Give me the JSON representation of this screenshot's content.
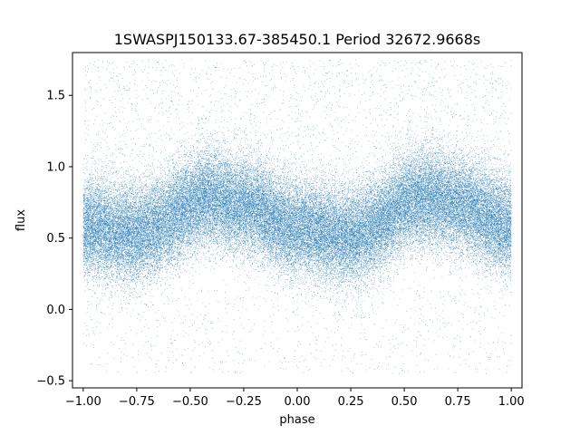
{
  "chart_data": {
    "type": "scatter",
    "title": "1SWASPJ150133.67-385450.1 Period 32672.9668s",
    "xlabel": "phase",
    "ylabel": "flux",
    "xlim": [
      -1.05,
      1.05
    ],
    "ylim": [
      -0.55,
      1.8
    ],
    "x_ticks": [
      -1.0,
      -0.75,
      -0.5,
      -0.25,
      0.0,
      0.25,
      0.5,
      0.75,
      1.0
    ],
    "x_tick_labels": [
      "−1.00",
      "−0.75",
      "−0.50",
      "−0.25",
      "0.00",
      "0.25",
      "0.50",
      "0.75",
      "1.00"
    ],
    "y_ticks": [
      -0.5,
      0.0,
      0.5,
      1.0,
      1.5
    ],
    "y_tick_labels": [
      "−0.5",
      "0.0",
      "0.5",
      "1.0",
      "1.5"
    ],
    "grid": false,
    "legend": "none",
    "marker_color": "#1f77b4",
    "trend": {
      "description_points": [
        {
          "x": -1.0,
          "y": 0.58
        },
        {
          "x": -0.75,
          "y": 0.53
        },
        {
          "x": -0.4,
          "y": 0.78
        },
        {
          "x": -0.25,
          "y": 0.72
        },
        {
          "x": 0.0,
          "y": 0.57
        },
        {
          "x": 0.25,
          "y": 0.52
        },
        {
          "x": 0.6,
          "y": 0.78
        },
        {
          "x": 0.75,
          "y": 0.73
        },
        {
          "x": 1.0,
          "y": 0.58
        }
      ],
      "scatter_sigma": 0.17
    },
    "n_points": 60000
  }
}
